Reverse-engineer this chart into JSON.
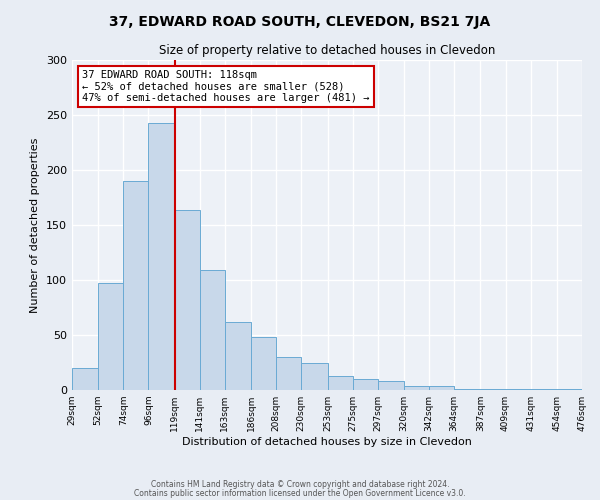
{
  "title": "37, EDWARD ROAD SOUTH, CLEVEDON, BS21 7JA",
  "subtitle": "Size of property relative to detached houses in Clevedon",
  "xlabel": "Distribution of detached houses by size in Clevedon",
  "ylabel": "Number of detached properties",
  "bin_edges": [
    29,
    52,
    74,
    96,
    119,
    141,
    163,
    186,
    208,
    230,
    253,
    275,
    297,
    320,
    342,
    364,
    387,
    409,
    431,
    454,
    476
  ],
  "bar_heights": [
    20,
    97,
    190,
    243,
    164,
    109,
    62,
    48,
    30,
    25,
    13,
    10,
    8,
    4,
    4,
    1,
    1,
    1,
    1,
    1
  ],
  "bar_facecolor": "#c8d8ea",
  "bar_edgecolor": "#6aaad4",
  "property_line_x": 119,
  "property_line_color": "#cc0000",
  "annotation_text": "37 EDWARD ROAD SOUTH: 118sqm\n← 52% of detached houses are smaller (528)\n47% of semi-detached houses are larger (481) →",
  "annotation_box_edgecolor": "#cc0000",
  "ylim": [
    0,
    300
  ],
  "yticks": [
    0,
    50,
    100,
    150,
    200,
    250,
    300
  ],
  "background_color": "#e8edf4",
  "plot_background": "#edf1f7",
  "grid_color": "#ffffff",
  "footer_line1": "Contains HM Land Registry data © Crown copyright and database right 2024.",
  "footer_line2": "Contains public sector information licensed under the Open Government Licence v3.0."
}
